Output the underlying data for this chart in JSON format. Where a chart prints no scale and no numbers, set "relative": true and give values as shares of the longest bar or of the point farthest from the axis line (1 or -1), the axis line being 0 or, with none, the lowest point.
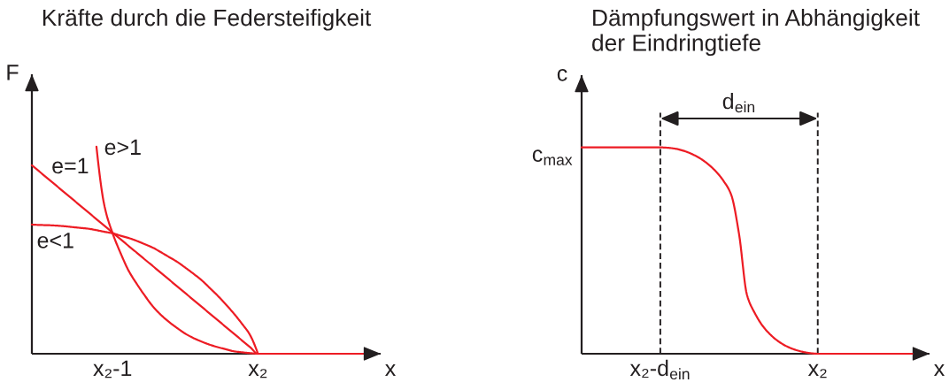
{
  "chart_data": [
    {
      "type": "line",
      "title": "Kräfte durch die Federsteifigkeit",
      "xlabel": "x",
      "ylabel": "F",
      "relative": true,
      "categories": [
        null,
        null,
        null,
        null,
        null,
        null,
        null,
        null,
        null,
        null,
        "x₂-1",
        null,
        null,
        null,
        null,
        null,
        null,
        null,
        null,
        null,
        null,
        null,
        null,
        null,
        null,
        null,
        null,
        null,
        "x₂",
        null,
        null,
        null,
        null,
        null,
        null,
        null,
        null,
        null,
        null,
        null,
        null,
        null
      ],
      "series": [
        {
          "name": "e=1",
          "color": "#ed1c24",
          "values": [
            0.91,
            0.878,
            0.845,
            0.813,
            0.78,
            0.748,
            0.715,
            0.683,
            0.65,
            0.618,
            0.585,
            0.553,
            0.52,
            0.488,
            0.455,
            0.423,
            0.39,
            0.358,
            0.325,
            0.293,
            0.26,
            0.228,
            0.195,
            0.163,
            0.13,
            0.098,
            0.065,
            0.033,
            0,
            0,
            0,
            0,
            0,
            0,
            0,
            0,
            0,
            0,
            0,
            0,
            0,
            0
          ]
        },
        {
          "name": "e>1",
          "color": "#ed1c24",
          "values": [
            null,
            null,
            null,
            null,
            null,
            null,
            null,
            null,
            1.0,
            0.712,
            0.582,
            0.485,
            0.4,
            0.337,
            0.28,
            0.228,
            0.187,
            0.153,
            0.124,
            0.097,
            0.076,
            0.059,
            0.044,
            0.032,
            0.022,
            0.012,
            0.007,
            0.003,
            0,
            null,
            null,
            null,
            null,
            null,
            null,
            null,
            null,
            null,
            null,
            null,
            null,
            null
          ]
        },
        {
          "name": "e<1",
          "color": "#ed1c24",
          "values": [
            0.624,
            0.622,
            0.621,
            0.619,
            0.616,
            0.612,
            0.608,
            0.604,
            0.597,
            0.589,
            0.582,
            0.57,
            0.559,
            0.545,
            0.529,
            0.512,
            0.49,
            0.467,
            0.444,
            0.416,
            0.387,
            0.356,
            0.319,
            0.281,
            0.239,
            0.195,
            0.146,
            0.092,
            0,
            null,
            null,
            null,
            null,
            null,
            null,
            null,
            null,
            null,
            null,
            null,
            null,
            null
          ]
        }
      ]
    },
    {
      "type": "line",
      "title": "Dämpfungswert in Abhängigkeit\nder Eindringtiefe",
      "xlabel": "x",
      "ylabel": "c",
      "relative": true,
      "categories": [
        null,
        null,
        null,
        null,
        null,
        null,
        null,
        null,
        null,
        null,
        "x₂-d$_{ein}$",
        null,
        null,
        null,
        null,
        null,
        null,
        null,
        null,
        null,
        null,
        null,
        null,
        null,
        null,
        null,
        null,
        null,
        null,
        null,
        "x₂",
        null,
        null,
        null,
        null,
        null,
        null,
        null,
        null,
        null,
        null,
        null,
        null
      ],
      "series": [
        {
          "color": "#ed1c24",
          "values": [
            1,
            1,
            1,
            1,
            1,
            1,
            1,
            1,
            1,
            1,
            1,
            0.998,
            0.993,
            0.983,
            0.968,
            0.948,
            0.921,
            0.886,
            0.839,
            0.771,
            0.58,
            0.286,
            0.197,
            0.135,
            0.092,
            0.06,
            0.037,
            0.021,
            0.01,
            0.003,
            0,
            0,
            0,
            0,
            0,
            0,
            0,
            0,
            0,
            0,
            0,
            0,
            0
          ]
        }
      ],
      "ref_lines": [
        {
          "axis": "x",
          "value": "x₂-d$_{ein}$",
          "color": "#231f20",
          "line_style": "dashed"
        },
        {
          "axis": "x",
          "value": "x₂",
          "color": "#231f20",
          "line_style": "dashed"
        }
      ],
      "annotations": [
        "c$_{max}$",
        "d$_{ein}$"
      ]
    }
  ]
}
